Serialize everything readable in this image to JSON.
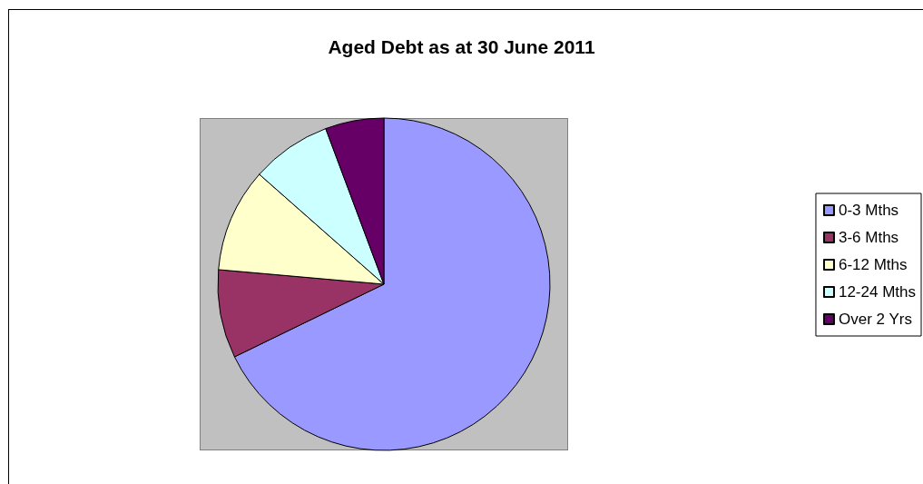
{
  "chart_data": {
    "type": "pie",
    "title": "Aged Debt as at 30 June 2011",
    "categories": [
      "0-3 Mths",
      "3-6 Mths",
      "6-12 Mths",
      "12-24 Mths",
      "Over 2 Yrs"
    ],
    "values": [
      67.8,
      8.6,
      10.1,
      7.8,
      5.7
    ],
    "colors": [
      "#9999ff",
      "#993366",
      "#ffffcc",
      "#ccffff",
      "#660066"
    ],
    "legend": "right"
  }
}
